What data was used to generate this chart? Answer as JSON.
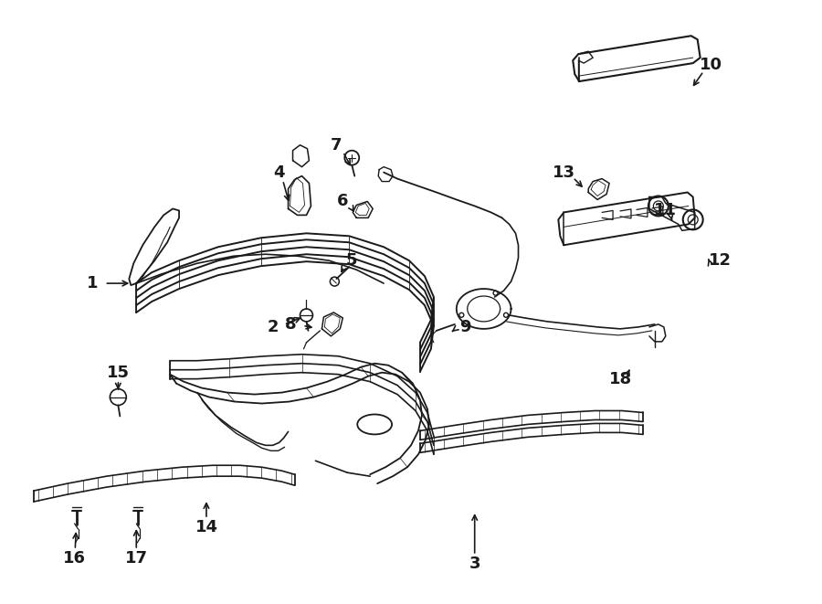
{
  "bg_color": "#ffffff",
  "line_color": "#1a1a1a",
  "figsize": [
    9.0,
    6.61
  ],
  "dpi": 100,
  "label_defs": [
    [
      "1",
      100,
      310,
      148,
      310
    ],
    [
      "2",
      298,
      358,
      337,
      345
    ],
    [
      "3",
      520,
      618,
      520,
      555
    ],
    [
      "4",
      305,
      188,
      318,
      228
    ],
    [
      "5",
      385,
      285,
      368,
      305
    ],
    [
      "6",
      375,
      220,
      393,
      238
    ],
    [
      "7",
      368,
      158,
      388,
      188
    ],
    [
      "8",
      318,
      355,
      350,
      360
    ],
    [
      "9",
      510,
      358,
      490,
      365
    ],
    [
      "10",
      780,
      70,
      755,
      100
    ],
    [
      "11",
      730,
      230,
      740,
      248
    ],
    [
      "12",
      790,
      285,
      772,
      282
    ],
    [
      "13",
      618,
      188,
      645,
      210
    ],
    [
      "14",
      225,
      578,
      225,
      542
    ],
    [
      "15",
      128,
      408,
      128,
      435
    ],
    [
      "16",
      80,
      612,
      82,
      575
    ],
    [
      "17",
      148,
      612,
      148,
      572
    ],
    [
      "18",
      680,
      415,
      695,
      398
    ]
  ]
}
